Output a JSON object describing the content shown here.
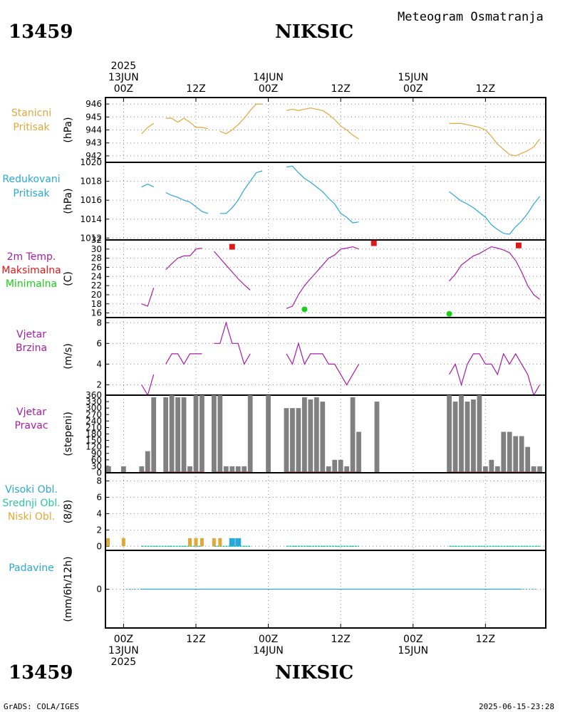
{
  "header": {
    "station_id": "13459",
    "station_name": "NIKSIC",
    "product": "Meteogram Osmatranja"
  },
  "footer": {
    "credit": "GrADS: COLA/IGES",
    "timestamp": "2025-06-15-23:28"
  },
  "time_axis": {
    "labels_top": [
      {
        "hour": 0,
        "lines": [
          "2025",
          "13JUN",
          "00Z"
        ]
      },
      {
        "hour": 12,
        "lines": [
          "12Z"
        ]
      },
      {
        "hour": 24,
        "lines": [
          "14JUN",
          "00Z"
        ]
      },
      {
        "hour": 36,
        "lines": [
          "12Z"
        ]
      },
      {
        "hour": 48,
        "lines": [
          "15JUN",
          "00Z"
        ]
      },
      {
        "hour": 60,
        "lines": [
          "12Z"
        ]
      }
    ],
    "labels_bottom": [
      {
        "hour": 0,
        "lines": [
          "00Z",
          "13JUN",
          "2025"
        ]
      },
      {
        "hour": 12,
        "lines": [
          "12Z"
        ]
      },
      {
        "hour": 24,
        "lines": [
          "00Z",
          "14JUN"
        ]
      },
      {
        "hour": 36,
        "lines": [
          "12Z"
        ]
      },
      {
        "hour": 48,
        "lines": [
          "00Z",
          "15JUN"
        ]
      },
      {
        "hour": 60,
        "lines": [
          "12Z"
        ]
      }
    ],
    "range_hours": [
      -3,
      70
    ]
  },
  "colors": {
    "station_pressure": "#e0a838",
    "reduced_pressure": "#2aa8d8",
    "temperature": "#a81ca8",
    "maximum": "#e01818",
    "minimum": "#18d018",
    "wind": "#a81ca8",
    "wind_dir": "#808080",
    "wind_dir_base": "#c85050",
    "cloud_high": "#2aa8d8",
    "cloud_mid": "#28c8a0",
    "cloud_low": "#e0a838",
    "precip": "#2aa8d8",
    "grid": "#888888"
  },
  "chart_data": [
    {
      "type": "line",
      "id": "station_pressure",
      "labels": [
        "Stanicni",
        "Pritisak"
      ],
      "unit": "(hPa)",
      "ylim": [
        941.5,
        946.5
      ],
      "yticks": [
        942,
        943,
        944,
        945,
        946
      ],
      "x": [
        3,
        4,
        5,
        null,
        7,
        8,
        9,
        10,
        11,
        12,
        13,
        14,
        15,
        16,
        17,
        18,
        19,
        20,
        21,
        22,
        23,
        24,
        25,
        null,
        27,
        28,
        29,
        30,
        31,
        32,
        33,
        34,
        35,
        36,
        37,
        38,
        39,
        null,
        54,
        55,
        56,
        57,
        58,
        59,
        60,
        61,
        62,
        63,
        64,
        65,
        66,
        67,
        68,
        69
      ],
      "values": [
        943.7,
        944.2,
        944.5,
        null,
        944.9,
        944.9,
        944.6,
        944.9,
        944.6,
        944.2,
        944.2,
        944.1,
        null,
        943.9,
        943.7,
        944.0,
        944.4,
        944.9,
        945.5,
        946.0,
        946.0,
        null,
        null,
        null,
        945.5,
        945.6,
        945.5,
        945.6,
        945.7,
        945.6,
        945.5,
        945.2,
        944.8,
        944.3,
        944.0,
        943.6,
        943.3,
        null,
        944.5,
        944.5,
        944.5,
        944.4,
        944.3,
        944.2,
        944.0,
        943.5,
        942.9,
        942.5,
        942.1,
        942.0,
        942.2,
        942.4,
        942.7,
        943.3
      ],
      "series_name": "Stanicni Pritisak"
    },
    {
      "type": "line",
      "id": "reduced_pressure",
      "labels": [
        "Redukovani",
        "Pritisak"
      ],
      "unit": "(hPa)",
      "ylim": [
        1011.8,
        1020.0
      ],
      "yticks": [
        1012,
        1014,
        1016,
        1018,
        1020
      ],
      "x": [
        3,
        4,
        5,
        null,
        7,
        8,
        9,
        10,
        11,
        12,
        13,
        14,
        15,
        16,
        17,
        18,
        19,
        20,
        21,
        22,
        23,
        24,
        null,
        27,
        28,
        29,
        30,
        31,
        32,
        33,
        34,
        35,
        36,
        37,
        38,
        39,
        null,
        54,
        55,
        56,
        57,
        58,
        59,
        60,
        61,
        62,
        63,
        64,
        65,
        66,
        67,
        68,
        69
      ],
      "values": [
        1017.4,
        1017.7,
        1017.4,
        null,
        1016.8,
        1016.5,
        1016.3,
        1016.0,
        1015.8,
        1015.3,
        1014.8,
        1014.6,
        null,
        1014.6,
        1014.6,
        1015.2,
        1016.0,
        1017.1,
        1018.0,
        1018.9,
        1019.1,
        null,
        null,
        1019.5,
        1019.6,
        1018.9,
        1018.3,
        1017.9,
        1017.4,
        1016.9,
        1016.2,
        1015.6,
        1014.6,
        1014.2,
        1013.6,
        1013.7,
        null,
        1016.9,
        1016.4,
        1015.9,
        1015.6,
        1015.2,
        1014.7,
        1014.2,
        1013.4,
        1012.9,
        1012.5,
        1012.4,
        1013.2,
        1013.8,
        1014.6,
        1015.6,
        1016.4
      ],
      "series_name": "Redukovani Pritisak"
    },
    {
      "type": "line",
      "id": "temperature",
      "labels": [
        "2m Temp.",
        "Maksimalna",
        "Minimalna"
      ],
      "unit": "(C)",
      "ylim": [
        15,
        32
      ],
      "yticks": [
        16,
        18,
        20,
        22,
        24,
        26,
        28,
        30,
        32
      ],
      "x": [
        3,
        4,
        5,
        null,
        7,
        8,
        9,
        10,
        11,
        12,
        13,
        null,
        15,
        16,
        17,
        18,
        19,
        20,
        21,
        null,
        27,
        28,
        29,
        30,
        31,
        32,
        33,
        34,
        35,
        36,
        37,
        38,
        39,
        null,
        54,
        55,
        56,
        57,
        58,
        59,
        60,
        61,
        62,
        63,
        64,
        65,
        66,
        67,
        68,
        69
      ],
      "values": [
        18.0,
        17.5,
        21.5,
        null,
        25.5,
        26.8,
        28.0,
        28.5,
        28.5,
        30.0,
        30.2,
        null,
        29.5,
        28.0,
        26.5,
        25.0,
        23.5,
        22.2,
        21.0,
        null,
        17.0,
        17.5,
        20.0,
        22.0,
        23.5,
        25.0,
        26.5,
        28.0,
        28.7,
        30.0,
        30.2,
        30.5,
        30.0,
        null,
        23.0,
        24.5,
        26.5,
        27.5,
        28.5,
        29.0,
        29.8,
        30.5,
        30.2,
        29.8,
        29.2,
        27.5,
        25.0,
        22.0,
        20.0,
        19.0
      ],
      "maximum": [
        {
          "x": 18,
          "value": 30.5
        },
        {
          "x": 41.5,
          "value": 31.3
        },
        {
          "x": 65.5,
          "value": 30.8
        }
      ],
      "minimum": [
        {
          "x": 30,
          "value": 16.8
        },
        {
          "x": 54,
          "value": 15.8
        }
      ],
      "series_name": "2m Temp."
    },
    {
      "type": "line",
      "id": "wind_speed",
      "labels": [
        "Vjetar",
        "Brzina"
      ],
      "unit": "(m/s)",
      "ylim": [
        1,
        8.5
      ],
      "yticks": [
        2,
        4,
        6,
        8
      ],
      "x": [
        3,
        4,
        5,
        null,
        7,
        8,
        9,
        10,
        11,
        12,
        13,
        null,
        15,
        16,
        17,
        18,
        19,
        20,
        21,
        null,
        27,
        28,
        29,
        30,
        31,
        32,
        33,
        34,
        35,
        36,
        37,
        38,
        39,
        null,
        54,
        55,
        56,
        57,
        58,
        59,
        60,
        61,
        62,
        63,
        64,
        65,
        66,
        67,
        68,
        69
      ],
      "values": [
        2,
        1,
        3,
        null,
        4,
        5,
        5,
        4,
        5,
        5,
        5,
        null,
        6,
        6,
        8,
        6,
        6,
        4,
        5,
        null,
        5,
        4,
        6,
        4,
        5,
        5,
        5,
        4,
        4,
        3,
        2,
        3,
        4,
        null,
        3,
        4,
        2,
        4,
        5,
        5,
        4,
        4,
        3,
        5,
        4,
        5,
        4,
        3,
        1,
        2
      ],
      "series_name": "Vjetar Brzina"
    },
    {
      "type": "bar",
      "id": "wind_direction",
      "labels": [
        "Vjetar",
        "Pravac"
      ],
      "unit": "(stepeni)",
      "ylim": [
        0,
        360
      ],
      "yticks": [
        0,
        30,
        60,
        90,
        120,
        150,
        180,
        210,
        240,
        270,
        300,
        330,
        360
      ],
      "x": [
        -3,
        0,
        3,
        4,
        5,
        7,
        8,
        9,
        10,
        11,
        12,
        13,
        15,
        16,
        17,
        18,
        19,
        20,
        21,
        24,
        27,
        28,
        29,
        30,
        31,
        32,
        33,
        34,
        35,
        36,
        37,
        38,
        39,
        42,
        54,
        55,
        56,
        57,
        58,
        59,
        60,
        61,
        62,
        63,
        64,
        65,
        66,
        67,
        68,
        69
      ],
      "values": [
        30,
        30,
        30,
        100,
        350,
        350,
        360,
        350,
        350,
        30,
        360,
        360,
        360,
        360,
        30,
        30,
        30,
        30,
        360,
        360,
        300,
        300,
        300,
        350,
        340,
        350,
        330,
        30,
        60,
        60,
        30,
        350,
        190,
        330,
        360,
        330,
        360,
        330,
        340,
        360,
        30,
        60,
        30,
        190,
        190,
        170,
        170,
        120,
        30,
        30
      ],
      "series_name": "Vjetar Pravac"
    },
    {
      "type": "bar",
      "id": "clouds",
      "labels": [
        "Visoki Obl.",
        "Srednji Obl.",
        "Niski Obl."
      ],
      "unit": "(8/8)",
      "ylim": [
        -0.5,
        9
      ],
      "yticks": [
        0,
        2,
        4,
        6,
        8
      ],
      "low_x": [
        -3,
        0,
        11,
        12,
        13,
        15,
        16
      ],
      "low_values": [
        1,
        1,
        1,
        1,
        1,
        1,
        1
      ],
      "high_x": [
        18,
        19
      ],
      "high_values": [
        1,
        1
      ],
      "series_name": "Oblacnost"
    },
    {
      "type": "line",
      "id": "precipitation",
      "labels": [
        "Padavine"
      ],
      "unit": "(mm/6h/12h)",
      "ylim": [
        -1,
        1
      ],
      "yticks": [
        0
      ],
      "x": [
        3,
        9,
        15,
        21,
        27,
        33,
        39,
        54,
        60,
        66
      ],
      "values": [
        0,
        0,
        0,
        0,
        0,
        0,
        0,
        0,
        0,
        0
      ],
      "series_name": "Padavine"
    }
  ]
}
